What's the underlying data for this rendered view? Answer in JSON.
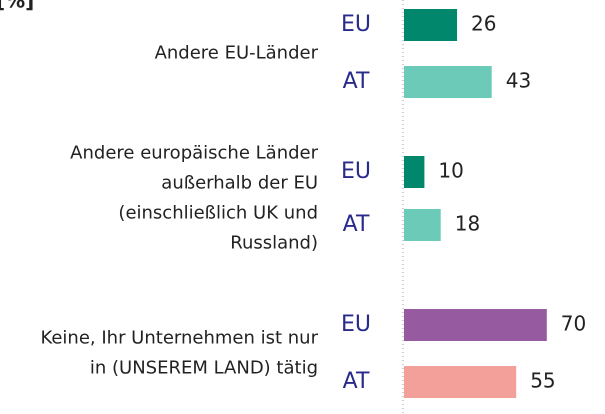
{
  "chart_data": {
    "type": "bar",
    "orientation": "horizontal",
    "unit_label": "[%]",
    "categories": [
      [
        "Andere EU-Länder"
      ],
      [
        "Andere europäische Länder",
        "außerhalb der EU",
        "(einschließlich UK und",
        "Russland)"
      ],
      [
        "Keine, Ihr Unternehmen ist nur",
        "in (UNSEREM LAND) tätig"
      ]
    ],
    "series": [
      {
        "name": "EU",
        "colors": [
          "#00876c",
          "#00876c",
          "#965aa0"
        ],
        "values": [
          26,
          10,
          70
        ]
      },
      {
        "name": "AT",
        "colors": [
          "#6ccbb8",
          "#6ccbb8",
          "#f4a09a"
        ],
        "values": [
          43,
          18,
          55
        ]
      }
    ],
    "xlim": [
      0,
      100
    ]
  }
}
